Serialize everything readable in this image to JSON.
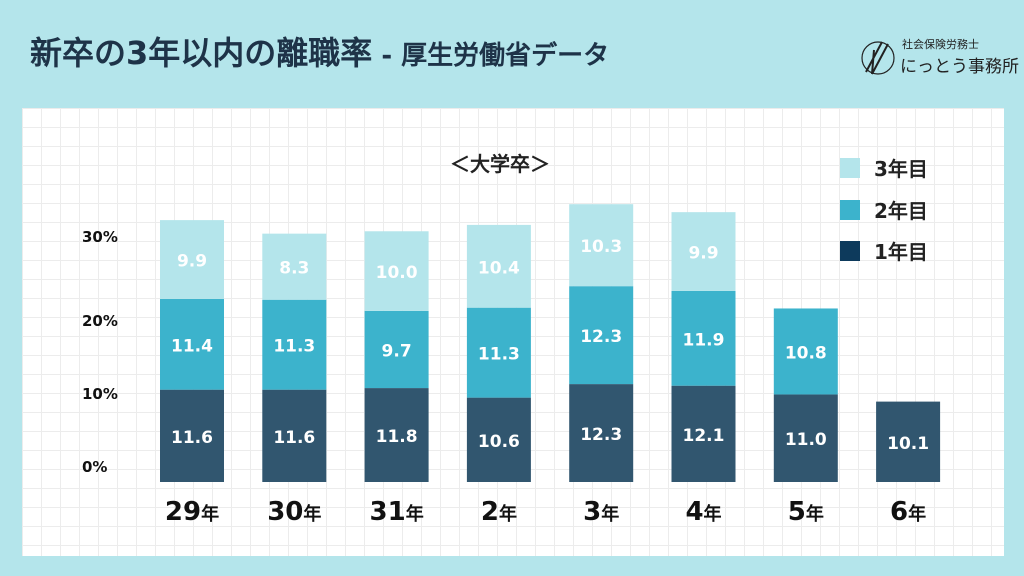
{
  "title": {
    "main": "新卒の3年以内の離職率",
    "sub": " - 厚生労働省データ"
  },
  "logo": {
    "line1": "社会保険労務士",
    "line2": "にっとう事務所"
  },
  "colors": {
    "background": "#b4e5eb",
    "year1": "#31566f",
    "year2": "#3cb3cc",
    "year3": "#b4e5eb",
    "legend_year1": "#0d3a5c"
  },
  "chart_data": {
    "type": "bar",
    "stacked": true,
    "title": "＜大学卒＞",
    "categories": [
      "29年",
      "30年",
      "31年",
      "2年",
      "3年",
      "4年",
      "5年",
      "6年"
    ],
    "series": [
      {
        "name": "1年目",
        "values": [
          11.6,
          11.6,
          11.8,
          10.6,
          12.3,
          12.1,
          11.0,
          10.1
        ]
      },
      {
        "name": "2年目",
        "values": [
          11.4,
          11.3,
          9.7,
          11.3,
          12.3,
          11.9,
          10.8,
          null
        ]
      },
      {
        "name": "3年目",
        "values": [
          9.9,
          8.3,
          10.0,
          10.4,
          10.3,
          9.9,
          null,
          null
        ]
      }
    ],
    "yticks": [
      "0%",
      "10%",
      "20%",
      "30%"
    ],
    "ylim": [
      0,
      35
    ],
    "grid": true,
    "legend": "top-right"
  }
}
